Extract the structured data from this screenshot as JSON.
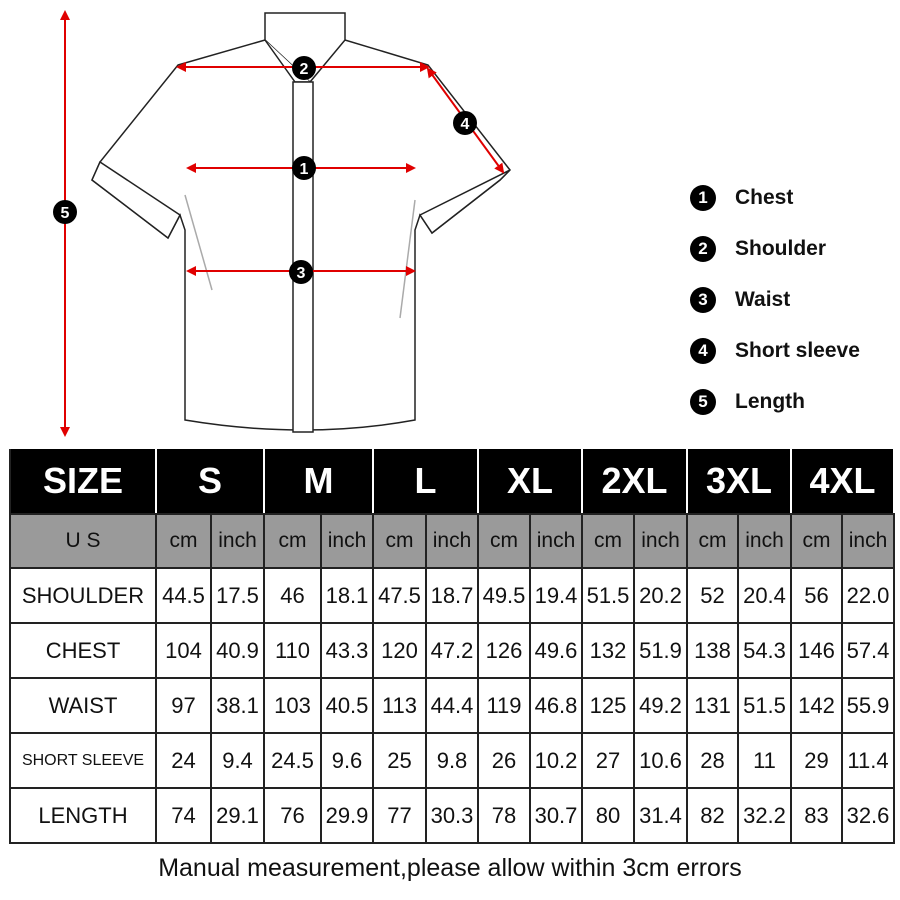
{
  "diagram": {
    "markers": [
      "1",
      "2",
      "3",
      "4",
      "5"
    ],
    "arrow_color": "#e00000"
  },
  "legend": [
    {
      "num": "1",
      "label": "Chest"
    },
    {
      "num": "2",
      "label": "Shoulder"
    },
    {
      "num": "3",
      "label": "Waist"
    },
    {
      "num": "4",
      "label": "Short sleeve"
    },
    {
      "num": "5",
      "label": "Length"
    }
  ],
  "table": {
    "size_header": "SIZE",
    "sizes": [
      "S",
      "M",
      "L",
      "XL",
      "2XL",
      "3XL",
      "4XL"
    ],
    "unit_label": "U S",
    "units": [
      "cm",
      "inch"
    ],
    "rows": [
      {
        "label": "SHOULDER",
        "values": [
          "44.5",
          "17.5",
          "46",
          "18.1",
          "47.5",
          "18.7",
          "49.5",
          "19.4",
          "51.5",
          "20.2",
          "52",
          "20.4",
          "56",
          "22.0"
        ]
      },
      {
        "label": "CHEST",
        "values": [
          "104",
          "40.9",
          "110",
          "43.3",
          "120",
          "47.2",
          "126",
          "49.6",
          "132",
          "51.9",
          "138",
          "54.3",
          "146",
          "57.4"
        ]
      },
      {
        "label": "WAIST",
        "values": [
          "97",
          "38.1",
          "103",
          "40.5",
          "113",
          "44.4",
          "119",
          "46.8",
          "125",
          "49.2",
          "131",
          "51.5",
          "142",
          "55.9"
        ]
      },
      {
        "label": "SHORT SLEEVE",
        "values": [
          "24",
          "9.4",
          "24.5",
          "9.6",
          "25",
          "9.8",
          "26",
          "10.2",
          "27",
          "10.6",
          "28",
          "11",
          "29",
          "11.4"
        ]
      },
      {
        "label": "LENGTH",
        "values": [
          "74",
          "29.1",
          "76",
          "29.9",
          "77",
          "30.3",
          "78",
          "30.7",
          "80",
          "31.4",
          "82",
          "32.2",
          "83",
          "32.6"
        ]
      }
    ]
  },
  "caption": "Manual measurement,please allow within 3cm errors"
}
